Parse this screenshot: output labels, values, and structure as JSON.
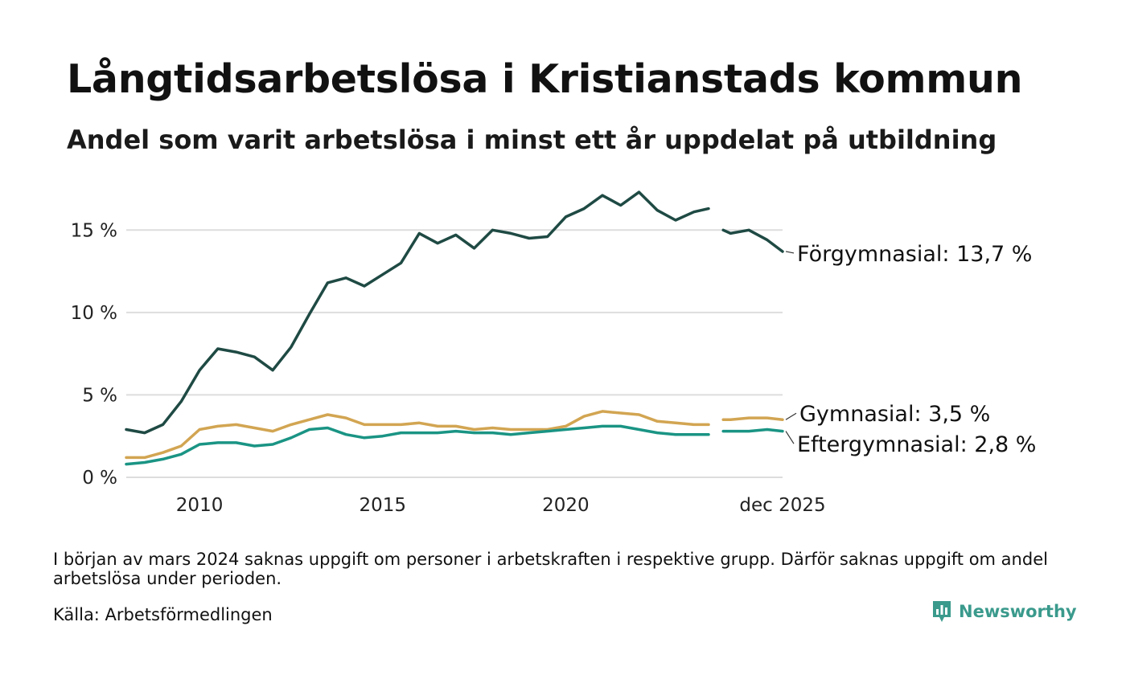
{
  "header": {
    "title": "Långtidsarbetslösa i Kristianstads kommun",
    "subtitle": "Andel som varit arbetslösa i minst ett år uppdelat på utbildning"
  },
  "footer": {
    "note": "I början av mars 2024 saknas uppgift om personer i arbetskraften i respektive grupp. Därför saknas uppgift om andel arbetslösa under perioden.",
    "source": "Källa: Arbetsförmedlingen",
    "brand": "Newsworthy"
  },
  "colors": {
    "forgymnasial": "#1f4a44",
    "gymnasial": "#d2a552",
    "eftergymnasial": "#1a9484",
    "grid": "#dddddd",
    "brand": "#3a9a8c"
  },
  "chart_data": {
    "type": "line",
    "title": "Långtidsarbetslösa i Kristianstads kommun",
    "xlabel": "",
    "ylabel": "",
    "xlim": [
      2008.0,
      2025.92
    ],
    "ylim": [
      0,
      17.5
    ],
    "y_ticks": [
      0,
      5,
      10,
      15
    ],
    "y_tick_labels": [
      "0 %",
      "5 %",
      "10 %",
      "15 %"
    ],
    "x_ticks": [
      2010,
      2015,
      2020,
      2025.92
    ],
    "x_tick_labels": [
      "2010",
      "2015",
      "2020",
      "dec 2025"
    ],
    "gap": [
      2023.9,
      2024.3
    ],
    "x": [
      2008.0,
      2008.5,
      2009.0,
      2009.5,
      2010.0,
      2010.5,
      2011.0,
      2011.5,
      2012.0,
      2012.5,
      2013.0,
      2013.5,
      2014.0,
      2014.5,
      2015.0,
      2015.5,
      2016.0,
      2016.5,
      2017.0,
      2017.5,
      2018.0,
      2018.5,
      2019.0,
      2019.5,
      2020.0,
      2020.5,
      2021.0,
      2021.5,
      2022.0,
      2022.5,
      2023.0,
      2023.5,
      2023.9,
      2024.3,
      2024.5,
      2025.0,
      2025.5,
      2025.92
    ],
    "series": [
      {
        "name": "Förgymnasial",
        "end_label": "Förgymnasial: 13,7 %",
        "color_key": "forgymnasial",
        "values": [
          2.9,
          2.7,
          3.2,
          4.6,
          6.5,
          7.8,
          7.6,
          7.3,
          6.5,
          7.9,
          9.9,
          11.8,
          12.1,
          11.6,
          12.3,
          13.0,
          14.8,
          14.2,
          14.7,
          13.9,
          15.0,
          14.8,
          14.5,
          14.6,
          15.8,
          16.3,
          17.1,
          16.5,
          17.3,
          16.2,
          15.6,
          16.1,
          16.3,
          15.0,
          14.8,
          15.0,
          14.4,
          13.7
        ]
      },
      {
        "name": "Gymnasial",
        "end_label": "Gymnasial:  3,5 %",
        "color_key": "gymnasial",
        "values": [
          1.2,
          1.2,
          1.5,
          1.9,
          2.9,
          3.1,
          3.2,
          3.0,
          2.8,
          3.2,
          3.5,
          3.8,
          3.6,
          3.2,
          3.2,
          3.2,
          3.3,
          3.1,
          3.1,
          2.9,
          3.0,
          2.9,
          2.9,
          2.9,
          3.1,
          3.7,
          4.0,
          3.9,
          3.8,
          3.4,
          3.3,
          3.2,
          3.2,
          3.5,
          3.5,
          3.6,
          3.6,
          3.5
        ]
      },
      {
        "name": "Eftergymnasial",
        "end_label": "Eftergymnasial:  2,8 %",
        "color_key": "eftergymnasial",
        "values": [
          0.8,
          0.9,
          1.1,
          1.4,
          2.0,
          2.1,
          2.1,
          1.9,
          2.0,
          2.4,
          2.9,
          3.0,
          2.6,
          2.4,
          2.5,
          2.7,
          2.7,
          2.7,
          2.8,
          2.7,
          2.7,
          2.6,
          2.7,
          2.8,
          2.9,
          3.0,
          3.1,
          3.1,
          2.9,
          2.7,
          2.6,
          2.6,
          2.6,
          2.8,
          2.8,
          2.8,
          2.9,
          2.8
        ]
      }
    ]
  }
}
